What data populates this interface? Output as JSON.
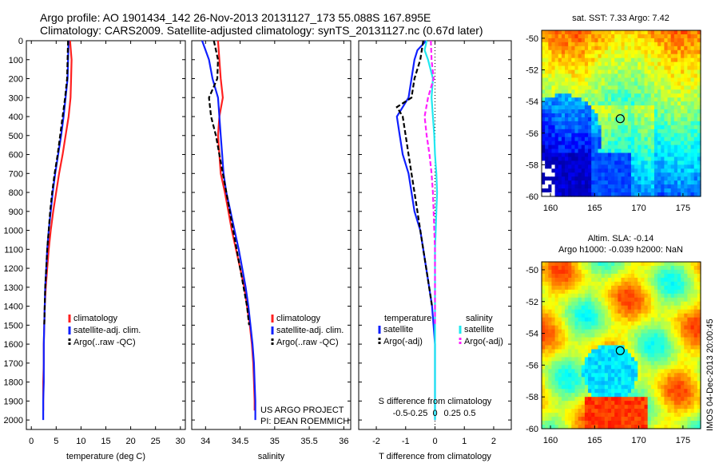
{
  "header": {
    "line1": "Argo profile: AO 1901434_142 26-Nov-2013 20131127_173 55.088S 167.895E",
    "line2": "Climatology: CARS2009. Satellite-adjusted climatology: synTS_20131127.nc (0.67d later)"
  },
  "colors": {
    "climatology": "#ff2020",
    "satellite": "#1020ff",
    "argo": "#000000",
    "sat_salinity": "#20e8f0",
    "argo_salinity": "#ff20ff"
  },
  "chart_data": [
    {
      "type": "line",
      "id": "temperature",
      "xlabel": "temperature (deg C)",
      "xlim": [
        -1,
        31
      ],
      "xticks": [
        0,
        5,
        10,
        15,
        20,
        25,
        30
      ],
      "ylim": [
        2050,
        0
      ],
      "yticks": [
        0,
        100,
        200,
        300,
        400,
        500,
        600,
        700,
        800,
        900,
        1000,
        1100,
        1200,
        1300,
        1400,
        1500,
        1600,
        1700,
        1800,
        1900,
        2000
      ],
      "legend": [
        "climatology",
        "satellite-adj. clim.",
        "Argo(..raw -QC)"
      ],
      "series": [
        {
          "name": "climatology",
          "depth": [
            0,
            100,
            200,
            300,
            400,
            500,
            600,
            700,
            800,
            900,
            1000,
            1100,
            1200,
            1300,
            1400,
            1500,
            1600,
            1700,
            1800,
            1900,
            1950
          ],
          "values": [
            7.8,
            8.1,
            8.0,
            7.9,
            7.5,
            6.9,
            6.3,
            5.6,
            5.0,
            4.4,
            3.9,
            3.5,
            3.2,
            2.9,
            2.7,
            2.6,
            2.5,
            2.5,
            2.4,
            2.4,
            2.4
          ]
        },
        {
          "name": "satellite-adj. clim.",
          "depth": [
            0,
            100,
            200,
            300,
            400,
            500,
            600,
            700,
            800,
            900,
            1000,
            1100,
            1200,
            1300,
            1400,
            1500,
            1600,
            1700,
            1800,
            1900,
            2000
          ],
          "values": [
            7.5,
            7.4,
            7.3,
            6.9,
            6.5,
            6.0,
            5.4,
            4.8,
            4.3,
            3.9,
            3.5,
            3.2,
            3.0,
            2.8,
            2.7,
            2.6,
            2.5,
            2.5,
            2.5,
            2.4,
            2.4
          ]
        },
        {
          "name": "Argo(..raw -QC)",
          "depth": [
            0,
            100,
            200,
            300,
            400,
            500,
            600,
            700,
            800,
            900,
            1000,
            1100,
            1200,
            1300,
            1400,
            1500
          ],
          "values": [
            7.4,
            7.3,
            7.2,
            6.8,
            6.3,
            5.8,
            5.3,
            4.7,
            4.2,
            3.8,
            3.5,
            3.2,
            3.0,
            2.8,
            2.7,
            2.6
          ]
        }
      ]
    },
    {
      "type": "line",
      "id": "salinity",
      "xlabel": "salinity",
      "xlim": [
        33.8,
        36.1
      ],
      "xticks": [
        34,
        34.5,
        35,
        35.5,
        36
      ],
      "ylim": [
        2050,
        0
      ],
      "legend": [
        "climatology",
        "satellite-adj. clim.",
        "Argo(..raw -QC)"
      ],
      "annotations": [
        "US ARGO PROJECT",
        "PI: DEAN ROEMMICH"
      ],
      "series": [
        {
          "name": "climatology",
          "depth": [
            0,
            100,
            200,
            300,
            400,
            500,
            600,
            700,
            800,
            900,
            1000,
            1100,
            1200,
            1300,
            1400,
            1500,
            1600,
            1700,
            1800,
            1900,
            1950
          ],
          "values": [
            34.18,
            34.2,
            34.22,
            34.25,
            34.2,
            34.18,
            34.2,
            34.22,
            34.28,
            34.33,
            34.38,
            34.44,
            34.5,
            34.56,
            34.6,
            34.64,
            34.67,
            34.69,
            34.7,
            34.71,
            34.71
          ]
        },
        {
          "name": "satellite-adj. clim.",
          "depth": [
            0,
            50,
            100,
            200,
            300,
            400,
            500,
            600,
            700,
            800,
            900,
            1000,
            1100,
            1200,
            1300,
            1400,
            1500,
            1600,
            1700,
            1800,
            1900,
            2000
          ],
          "values": [
            33.95,
            34.0,
            34.05,
            34.1,
            34.18,
            34.2,
            34.22,
            34.24,
            34.26,
            34.3,
            34.36,
            34.42,
            34.48,
            34.53,
            34.58,
            34.62,
            34.65,
            34.68,
            34.7,
            34.71,
            34.72,
            34.72
          ]
        },
        {
          "name": "Argo(..raw -QC)",
          "depth": [
            0,
            100,
            200,
            300,
            400,
            500,
            600,
            700,
            800,
            900,
            1000,
            1100,
            1200,
            1300,
            1400,
            1500
          ],
          "values": [
            34.12,
            34.18,
            34.17,
            34.05,
            34.08,
            34.15,
            34.2,
            34.25,
            34.3,
            34.35,
            34.4,
            34.45,
            34.5,
            34.55,
            34.6,
            34.63
          ]
        }
      ]
    },
    {
      "type": "line",
      "id": "difference",
      "xlabel": "T difference from climatology",
      "xlabel_top": "S difference from climatology",
      "xlim": [
        -2.6,
        2.6
      ],
      "xticks": [
        -2,
        -1,
        0,
        1,
        2
      ],
      "sticks": [
        -0.5,
        -0.25,
        0,
        0.25,
        0.5
      ],
      "slabels": [
        "-0.5",
        "-0.25",
        "0",
        "0.25",
        "0.5"
      ],
      "ylim": [
        2050,
        0
      ],
      "legend_titles": [
        "temperature",
        "salinity"
      ],
      "legend": [
        "satellite",
        "Argo(-adj)",
        "satellite",
        "Argo(-adj)"
      ],
      "series": [
        {
          "name": "temperature satellite",
          "depth": [
            0,
            50,
            100,
            200,
            300,
            400,
            500,
            600,
            700,
            800,
            900,
            1000,
            1100,
            1200,
            1300,
            1400,
            1500,
            1600,
            1700,
            1800,
            1900,
            2000
          ],
          "values": [
            -0.3,
            -0.6,
            -0.7,
            -0.8,
            -0.9,
            -1.3,
            -1.2,
            -1.1,
            -0.9,
            -0.8,
            -0.7,
            -0.5,
            -0.4,
            -0.3,
            -0.2,
            -0.1,
            -0.05,
            0.0,
            0.0,
            0.0,
            0.0,
            0.0
          ]
        },
        {
          "name": "temperature Argo(-adj)",
          "depth": [
            0,
            100,
            200,
            300,
            350,
            400,
            500,
            600,
            700,
            800,
            900,
            1000,
            1100,
            1200,
            1300,
            1400
          ],
          "values": [
            -0.4,
            -0.5,
            -0.7,
            -0.8,
            -1.3,
            -1.1,
            -1.0,
            -0.9,
            -0.8,
            -0.7,
            -0.6,
            -0.5,
            -0.4,
            -0.3,
            -0.2,
            -0.1
          ]
        },
        {
          "name": "salinity satellite",
          "depth": [
            0,
            50,
            100,
            200,
            300,
            400,
            500,
            600,
            700,
            800,
            900,
            1000,
            1100,
            1200,
            1300,
            1400,
            1500,
            1600,
            1700,
            1800,
            1900,
            2000
          ],
          "values": [
            -0.12,
            -0.15,
            -0.1,
            -0.03,
            -0.05,
            -0.03,
            -0.01,
            0.0,
            0.02,
            0.03,
            0.02,
            0.01,
            0.0,
            0.0,
            0.0,
            0.0,
            0.0,
            0.0,
            0.0,
            0.0,
            0.0,
            0.0
          ]
        },
        {
          "name": "salinity Argo(-adj)",
          "depth": [
            0,
            100,
            200,
            300,
            400,
            500,
            600,
            700,
            800,
            900,
            1000,
            1100,
            1200,
            1300,
            1400,
            1500
          ],
          "values": [
            -0.06,
            -0.05,
            -0.02,
            -0.1,
            -0.15,
            -0.12,
            -0.08,
            -0.05,
            -0.03,
            -0.02,
            -0.01,
            0.0,
            0.0,
            0.0,
            0.0,
            0.0
          ]
        }
      ]
    },
    {
      "type": "heatmap",
      "id": "sst_map",
      "title": "sat. SST: 7.33  Argo: 7.42",
      "xlim": [
        159,
        177
      ],
      "ylim": [
        -60,
        -49.5
      ],
      "xticks": [
        160,
        165,
        170,
        175
      ],
      "yticks": [
        -50,
        -52,
        -54,
        -56,
        -58,
        -60
      ],
      "marker": {
        "lon": 167.895,
        "lat": -55.088
      }
    },
    {
      "type": "heatmap",
      "id": "sla_map",
      "title_line1": "Altim. SLA: -0.14",
      "title_line2": "Argo h1000: -0.039 h2000: NaN",
      "xlim": [
        159,
        177
      ],
      "ylim": [
        -60,
        -49.5
      ],
      "xticks": [
        160,
        165,
        170,
        175
      ],
      "yticks": [
        -50,
        -52,
        -54,
        -56,
        -58,
        -60
      ],
      "marker": {
        "lon": 167.895,
        "lat": -55.088
      }
    }
  ],
  "stamp": "IMOS 04-Dec-2013 20:00:45"
}
